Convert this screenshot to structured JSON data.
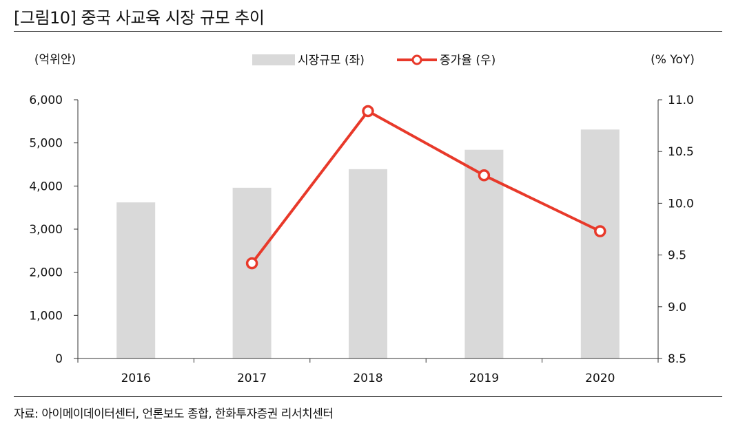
{
  "header": {
    "title": "[그림10]  중국 사교육 시장 규모 추이"
  },
  "footer": {
    "source": "자료: 아이메이데이터센터, 언론보도 종합, 한화투자증권 리서치센터"
  },
  "colors": {
    "bar": "#d9d9d9",
    "line": "#e8392a",
    "marker_fill": "#ffffff",
    "axis": "#333333"
  },
  "chart_data": {
    "type": "bar",
    "categories": [
      "2016",
      "2017",
      "2018",
      "2019",
      "2020"
    ],
    "series": [
      {
        "name": "시장규모 (좌)",
        "type": "bar",
        "axis": "left",
        "values": [
          3620,
          3960,
          4390,
          4840,
          5310
        ]
      },
      {
        "name": "증가율 (우)",
        "type": "line",
        "axis": "right",
        "values": [
          null,
          9.42,
          10.89,
          10.27,
          9.73
        ]
      }
    ],
    "y_left": {
      "label": "(억위안)",
      "range": [
        0,
        6000
      ],
      "ticks": [
        0,
        1000,
        2000,
        3000,
        4000,
        5000,
        6000
      ],
      "tick_labels": [
        "0",
        "1,000",
        "2,000",
        "3,000",
        "4,000",
        "5,000",
        "6,000"
      ]
    },
    "y_right": {
      "label": "(% YoY)",
      "range": [
        8.5,
        11.0
      ],
      "ticks": [
        8.5,
        9.0,
        9.5,
        10.0,
        10.5,
        11.0
      ],
      "tick_labels": [
        "8.5",
        "9.0",
        "9.5",
        "10.0",
        "10.5",
        "11.0"
      ]
    },
    "legend_placement": "top-center",
    "grid": false
  }
}
